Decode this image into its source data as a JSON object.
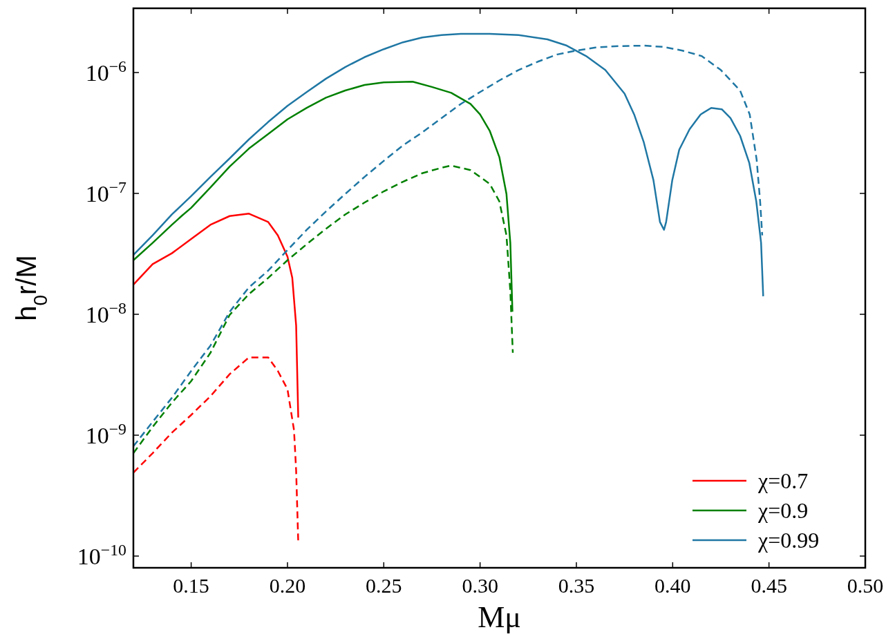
{
  "chart_data": {
    "type": "line",
    "xlabel": "Mμ",
    "ylabel": "h$_{0}$r/M",
    "log": "y",
    "xlim": [
      0.12,
      0.5
    ],
    "ylim": [
      8e-11,
      3.4e-06
    ],
    "xticks": [
      0.15,
      {
        "value": 0.2,
        "label": "0.20"
      },
      0.25,
      {
        "value": 0.3,
        "label": "0.30"
      },
      0.35,
      {
        "value": 0.4,
        "label": "0.40"
      },
      0.45,
      {
        "value": 0.5,
        "label": "0.50"
      }
    ],
    "yticks": [
      {
        "value": 1e-10,
        "label": "10$^{−10}$"
      },
      {
        "value": 1e-09,
        "label": "10$^{−9}$"
      },
      {
        "value": 1e-08,
        "label": "10$^{−8}$"
      },
      {
        "value": 1e-07,
        "label": "10$^{−7}$"
      },
      {
        "value": 1e-06,
        "label": "10$^{−6}$"
      }
    ],
    "grid": false,
    "legend": "bottom right",
    "marker": "none",
    "series": [
      {
        "name": "χ=0.7",
        "color": "#ff0000",
        "line_style": "solid",
        "x": [
          0.12,
          0.13,
          0.14,
          0.15,
          0.16,
          0.17,
          0.18,
          0.19,
          0.195,
          0.2,
          0.2025,
          0.2045,
          0.2056
        ],
        "values": [
          1.76e-08,
          2.6e-08,
          3.2e-08,
          4.2e-08,
          5.5e-08,
          6.5e-08,
          6.8e-08,
          5.8e-08,
          4.5e-08,
          3e-08,
          2e-08,
          8.1e-09,
          1.4e-09
        ]
      },
      {
        "name": "χ=0.9",
        "color": "#008000",
        "line_style": "solid",
        "x": [
          0.12,
          0.13,
          0.14,
          0.145,
          0.15,
          0.16,
          0.17,
          0.18,
          0.19,
          0.2,
          0.21,
          0.22,
          0.23,
          0.24,
          0.25,
          0.265,
          0.275,
          0.285,
          0.295,
          0.3,
          0.305,
          0.31,
          0.3137,
          0.3157,
          0.3168
        ],
        "values": [
          2.8e-08,
          3.9e-08,
          5.5e-08,
          6.5e-08,
          7.6e-08,
          1.12e-07,
          1.67e-07,
          2.35e-07,
          3.1e-07,
          4.1e-07,
          5.1e-07,
          6.2e-07,
          7.1e-07,
          7.9e-07,
          8.3e-07,
          8.4e-07,
          7.6e-07,
          6.8e-07,
          5.5e-07,
          4.5e-07,
          3.3e-07,
          2e-07,
          9.9e-08,
          3.9e-08,
          1.05e-08
        ]
      },
      {
        "name": "χ=0.99",
        "color": "#1f77a4",
        "line_style": "solid",
        "x": [
          0.12,
          0.13,
          0.14,
          0.15,
          0.16,
          0.17,
          0.18,
          0.19,
          0.2,
          0.21,
          0.22,
          0.23,
          0.24,
          0.25,
          0.26,
          0.27,
          0.28,
          0.29,
          0.305,
          0.32,
          0.335,
          0.345,
          0.355,
          0.365,
          0.375,
          0.38,
          0.385,
          0.39,
          0.3934,
          0.3955,
          0.3966,
          0.3998,
          0.4034,
          0.4088,
          0.4145,
          0.42,
          0.4255,
          0.43,
          0.435,
          0.4398,
          0.4434,
          0.4459,
          0.447
        ],
        "values": [
          3.1e-08,
          4.5e-08,
          6.7e-08,
          9.5e-08,
          1.37e-07,
          1.95e-07,
          2.8e-07,
          3.9e-07,
          5.3e-07,
          6.9e-07,
          8.9e-07,
          1.11e-06,
          1.34e-06,
          1.56e-06,
          1.78e-06,
          1.95e-06,
          2.04e-06,
          2.09e-06,
          2.09e-06,
          2.04e-06,
          1.88e-06,
          1.67e-06,
          1.37e-06,
          1.05e-06,
          6.7e-07,
          4.5e-07,
          2.65e-07,
          1.29e-07,
          5.8e-08,
          5e-08,
          5.8e-08,
          1.29e-07,
          2.3e-07,
          3.4e-07,
          4.5e-07,
          5.1e-07,
          4.97e-07,
          4.2e-07,
          3e-07,
          1.78e-07,
          8.6e-08,
          3.9e-08,
          1.41e-08
        ]
      },
      {
        "color": "#ff0000",
        "line_style": "dashed",
        "x": [
          0.12,
          0.13,
          0.14,
          0.15,
          0.16,
          0.17,
          0.18,
          0.19,
          0.195,
          0.2,
          0.2034,
          0.2045,
          0.2056
        ],
        "values": [
          4.9e-10,
          7.1e-10,
          1.05e-09,
          1.47e-09,
          2.1e-09,
          3.2e-09,
          4.4e-09,
          4.4e-09,
          3.4e-09,
          2.4e-09,
          1.1e-09,
          5.1e-10,
          1.3e-10
        ]
      },
      {
        "color": "#008000",
        "line_style": "dashed",
        "x": [
          0.12,
          0.13,
          0.14,
          0.15,
          0.16,
          0.17,
          0.18,
          0.19,
          0.2,
          0.21,
          0.22,
          0.23,
          0.24,
          0.25,
          0.26,
          0.27,
          0.28,
          0.285,
          0.295,
          0.305,
          0.31,
          0.3137,
          0.3157,
          0.317
        ],
        "values": [
          7.1e-10,
          1.17e-09,
          1.86e-09,
          2.8e-09,
          4.8e-09,
          9.9e-09,
          1.47e-08,
          2e-08,
          2.8e-08,
          3.8e-08,
          5.1e-08,
          6.7e-08,
          8.4e-08,
          1.04e-07,
          1.25e-07,
          1.47e-07,
          1.63e-07,
          1.7e-07,
          1.56e-07,
          1.2e-07,
          8.6e-08,
          4.5e-08,
          1.56e-08,
          4.8e-09
        ]
      },
      {
        "color": "#1f77a4",
        "line_style": "dashed",
        "x": [
          0.12,
          0.13,
          0.14,
          0.15,
          0.16,
          0.17,
          0.18,
          0.19,
          0.2,
          0.21,
          0.22,
          0.23,
          0.24,
          0.25,
          0.26,
          0.27,
          0.28,
          0.29,
          0.3,
          0.31,
          0.32,
          0.33,
          0.34,
          0.35,
          0.36,
          0.37,
          0.385,
          0.395,
          0.405,
          0.415,
          0.425,
          0.435,
          0.44,
          0.4436,
          0.4454,
          0.4465
        ],
        "values": [
          8.1e-10,
          1.29e-09,
          2.04e-09,
          3.4e-09,
          5.5e-09,
          1.05e-08,
          1.67e-08,
          2.3e-08,
          3.4e-08,
          5e-08,
          7.1e-08,
          9.9e-08,
          1.37e-07,
          1.86e-07,
          2.5e-07,
          3.2e-07,
          4.2e-07,
          5.5e-07,
          6.9e-07,
          8.6e-07,
          1.05e-06,
          1.23e-06,
          1.41e-06,
          1.52e-06,
          1.61e-06,
          1.65e-06,
          1.67e-06,
          1.63e-06,
          1.52e-06,
          1.37e-06,
          1.05e-06,
          7.1e-07,
          4.5e-07,
          1.9e-07,
          8.6e-08,
          4.5e-08
        ]
      }
    ]
  }
}
